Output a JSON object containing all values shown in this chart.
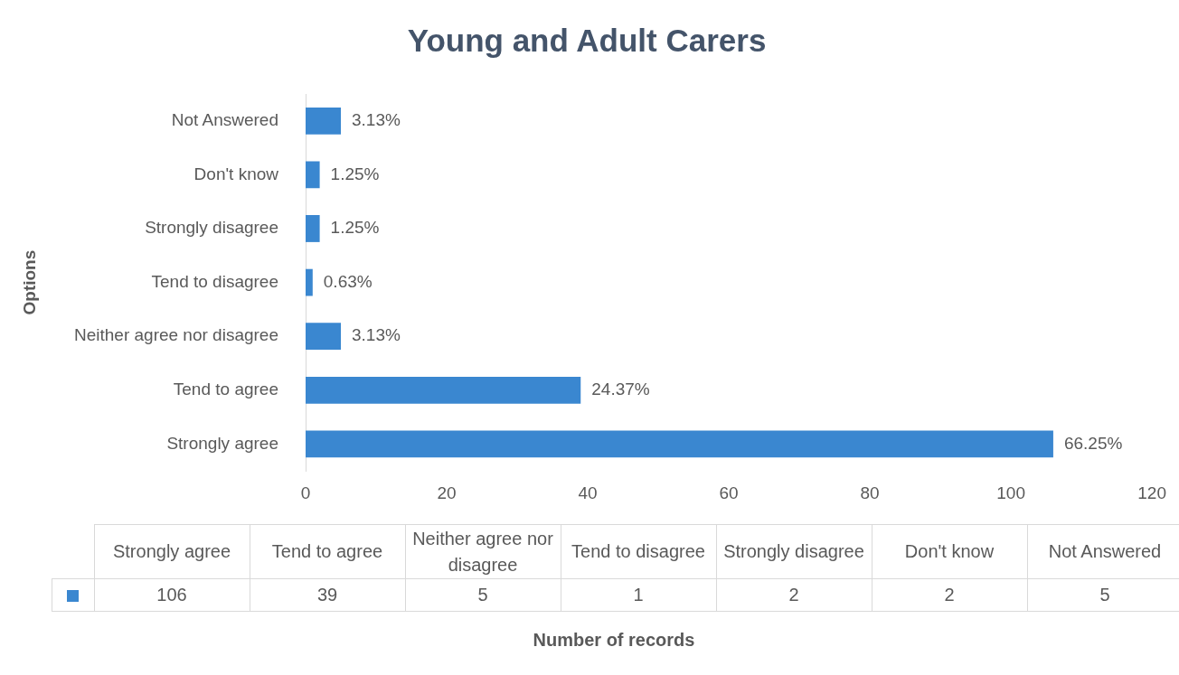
{
  "chart_data": [
    {
      "type": "bar",
      "orientation": "horizontal",
      "title": "Young and Adult Carers",
      "ylabel": "Options",
      "categories": [
        "Not Answered",
        "Don't know",
        "Strongly disagree",
        "Tend to disagree",
        "Neither agree nor disagree",
        "Tend to agree",
        "Strongly agree"
      ],
      "values": [
        5,
        2,
        2,
        1,
        5,
        39,
        106
      ],
      "annotations": [
        {
          "text": "3.13%",
          "x": 5,
          "y": "Not Answered"
        },
        {
          "text": "1.25%",
          "x": 2,
          "y": "Don't know"
        },
        {
          "text": "1.25%",
          "x": 2,
          "y": "Strongly disagree"
        },
        {
          "text": "0.63%",
          "x": 1,
          "y": "Tend to disagree"
        },
        {
          "text": "3.13%",
          "x": 5,
          "y": "Neither agree nor disagree"
        },
        {
          "text": "24.37%",
          "x": 39,
          "y": "Tend to agree"
        },
        {
          "text": "66.25%",
          "x": 106,
          "y": "Strongly agree"
        }
      ],
      "color": "#3a87d0",
      "xlim": [
        0,
        120
      ],
      "xticks": [
        0,
        20,
        40,
        60,
        80,
        100,
        120
      ],
      "grid": false,
      "legend": false
    },
    {
      "type": "other",
      "categories": [
        "Strongly agree",
        "Tend to agree",
        "Neither agree nor disagree",
        "Tend to disagree",
        "Strongly disagree",
        "Don't know",
        "Not Answered"
      ],
      "values": [
        106,
        39,
        5,
        1,
        2,
        2,
        5
      ],
      "value_labels": [
        "106",
        "39",
        "5",
        "1",
        "2",
        "2",
        "5"
      ],
      "color": "#3a87d0",
      "annotations": [
        "Number of records"
      ]
    }
  ]
}
